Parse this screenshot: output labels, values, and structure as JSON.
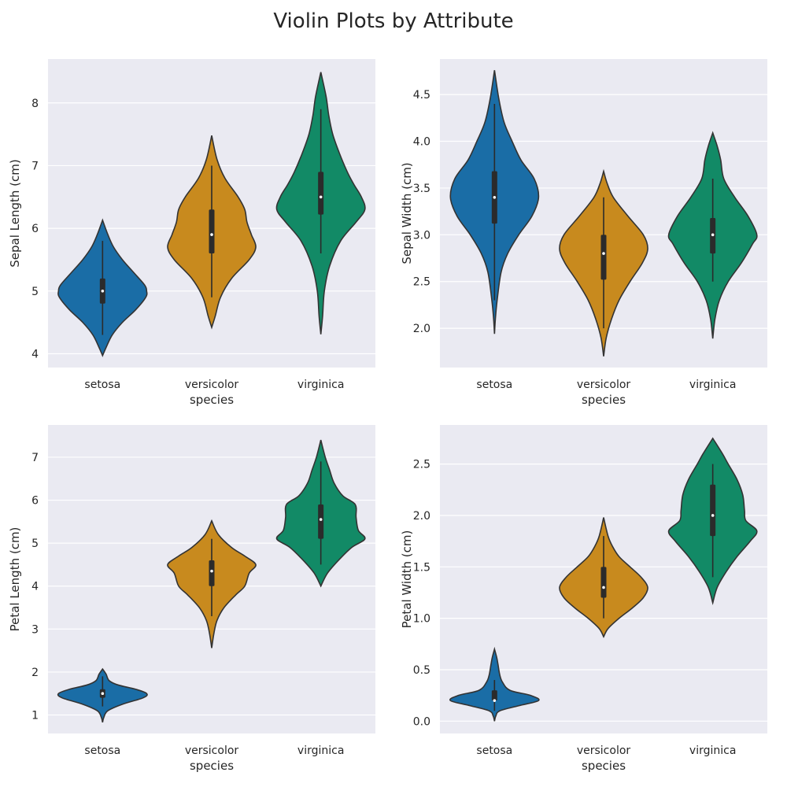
{
  "title": "Violin Plots by Attribute",
  "colors": {
    "setosa": "#1a6da6",
    "versicolor": "#c88a1e",
    "virginica": "#128a66",
    "background": "#eaeaf2",
    "outline": "#333333"
  },
  "chart_data": [
    {
      "type": "violin",
      "xlabel": "species",
      "ylabel": "Sepal Length (cm)",
      "categories": [
        "setosa",
        "versicolor",
        "virginica"
      ],
      "ylim": [
        3.78,
        8.7
      ],
      "yticks": [
        4,
        5,
        6,
        7,
        8
      ],
      "grid": true,
      "violins": [
        {
          "name": "setosa",
          "min": 4.3,
          "q1": 4.8,
          "median": 5.0,
          "q3": 5.2,
          "max": 5.8,
          "kde_min": 3.97,
          "kde_max": 6.13,
          "density": [
            [
              3.97,
              0.0
            ],
            [
              4.1,
              0.08
            ],
            [
              4.3,
              0.22
            ],
            [
              4.5,
              0.45
            ],
            [
              4.7,
              0.75
            ],
            [
              4.9,
              0.98
            ],
            [
              5.0,
              1.0
            ],
            [
              5.1,
              0.95
            ],
            [
              5.3,
              0.7
            ],
            [
              5.5,
              0.45
            ],
            [
              5.7,
              0.25
            ],
            [
              5.9,
              0.12
            ],
            [
              6.13,
              0.0
            ]
          ]
        },
        {
          "name": "versicolor",
          "min": 4.9,
          "q1": 5.6,
          "median": 5.9,
          "q3": 6.3,
          "max": 7.0,
          "kde_min": 4.42,
          "kde_max": 7.48,
          "density": [
            [
              4.42,
              0.0
            ],
            [
              4.6,
              0.08
            ],
            [
              4.9,
              0.2
            ],
            [
              5.2,
              0.45
            ],
            [
              5.5,
              0.85
            ],
            [
              5.7,
              1.0
            ],
            [
              5.9,
              0.9
            ],
            [
              6.1,
              0.8
            ],
            [
              6.3,
              0.75
            ],
            [
              6.5,
              0.6
            ],
            [
              6.8,
              0.3
            ],
            [
              7.1,
              0.12
            ],
            [
              7.48,
              0.0
            ]
          ]
        },
        {
          "name": "virginica",
          "min": 5.6,
          "q1": 6.22,
          "median": 6.5,
          "q3": 6.9,
          "max": 7.9,
          "kde_min": 4.31,
          "kde_max": 8.49,
          "density": [
            [
              4.31,
              0.0
            ],
            [
              4.6,
              0.04
            ],
            [
              5.0,
              0.08
            ],
            [
              5.4,
              0.2
            ],
            [
              5.8,
              0.45
            ],
            [
              6.1,
              0.8
            ],
            [
              6.3,
              1.0
            ],
            [
              6.5,
              0.92
            ],
            [
              6.7,
              0.75
            ],
            [
              6.9,
              0.6
            ],
            [
              7.2,
              0.42
            ],
            [
              7.5,
              0.27
            ],
            [
              7.8,
              0.18
            ],
            [
              8.1,
              0.12
            ],
            [
              8.49,
              0.0
            ]
          ]
        }
      ]
    },
    {
      "type": "violin",
      "xlabel": "species",
      "ylabel": "Sepal Width (cm)",
      "categories": [
        "setosa",
        "versicolor",
        "virginica"
      ],
      "ylim": [
        1.58,
        4.88
      ],
      "yticks": [
        2.0,
        2.5,
        3.0,
        3.5,
        4.0,
        4.5
      ],
      "grid": true,
      "violins": [
        {
          "name": "setosa",
          "min": 2.3,
          "q1": 3.12,
          "median": 3.4,
          "q3": 3.68,
          "max": 4.4,
          "kde_min": 1.94,
          "kde_max": 4.76,
          "density": [
            [
              1.94,
              0.0
            ],
            [
              2.1,
              0.02
            ],
            [
              2.3,
              0.06
            ],
            [
              2.6,
              0.15
            ],
            [
              2.8,
              0.3
            ],
            [
              3.0,
              0.55
            ],
            [
              3.2,
              0.85
            ],
            [
              3.4,
              1.0
            ],
            [
              3.6,
              0.9
            ],
            [
              3.8,
              0.6
            ],
            [
              4.0,
              0.4
            ],
            [
              4.2,
              0.22
            ],
            [
              4.45,
              0.1
            ],
            [
              4.76,
              0.0
            ]
          ]
        },
        {
          "name": "versicolor",
          "min": 2.0,
          "q1": 2.52,
          "median": 2.8,
          "q3": 3.0,
          "max": 3.4,
          "kde_min": 1.7,
          "kde_max": 3.68,
          "density": [
            [
              1.7,
              0.0
            ],
            [
              1.9,
              0.06
            ],
            [
              2.1,
              0.18
            ],
            [
              2.3,
              0.35
            ],
            [
              2.5,
              0.6
            ],
            [
              2.7,
              0.88
            ],
            [
              2.85,
              1.0
            ],
            [
              3.0,
              0.9
            ],
            [
              3.2,
              0.55
            ],
            [
              3.4,
              0.22
            ],
            [
              3.55,
              0.08
            ],
            [
              3.68,
              0.0
            ]
          ]
        },
        {
          "name": "virginica",
          "min": 2.5,
          "q1": 2.8,
          "median": 3.0,
          "q3": 3.18,
          "max": 3.6,
          "kde_min": 1.89,
          "kde_max": 4.09,
          "density": [
            [
              1.89,
              0.0
            ],
            [
              2.1,
              0.05
            ],
            [
              2.3,
              0.15
            ],
            [
              2.5,
              0.35
            ],
            [
              2.7,
              0.65
            ],
            [
              2.9,
              0.9
            ],
            [
              3.0,
              1.0
            ],
            [
              3.2,
              0.8
            ],
            [
              3.4,
              0.5
            ],
            [
              3.6,
              0.25
            ],
            [
              3.8,
              0.18
            ],
            [
              3.95,
              0.1
            ],
            [
              4.09,
              0.0
            ]
          ]
        }
      ]
    },
    {
      "type": "violin",
      "xlabel": "species",
      "ylabel": "Petal Length (cm)",
      "categories": [
        "setosa",
        "versicolor",
        "virginica"
      ],
      "ylim": [
        0.57,
        7.75
      ],
      "yticks": [
        1,
        2,
        3,
        4,
        5,
        6,
        7
      ],
      "grid": true,
      "violins": [
        {
          "name": "setosa",
          "min": 1.2,
          "q1": 1.4,
          "median": 1.5,
          "q3": 1.6,
          "max": 1.9,
          "kde_min": 0.83,
          "kde_max": 2.07,
          "density": [
            [
              0.83,
              0.0
            ],
            [
              0.95,
              0.03
            ],
            [
              1.1,
              0.12
            ],
            [
              1.25,
              0.45
            ],
            [
              1.4,
              0.92
            ],
            [
              1.5,
              1.0
            ],
            [
              1.6,
              0.75
            ],
            [
              1.7,
              0.35
            ],
            [
              1.8,
              0.15
            ],
            [
              1.95,
              0.08
            ],
            [
              2.07,
              0.0
            ]
          ]
        },
        {
          "name": "versicolor",
          "min": 3.3,
          "q1": 4.0,
          "median": 4.35,
          "q3": 4.6,
          "max": 5.1,
          "kde_min": 2.56,
          "kde_max": 5.52,
          "density": [
            [
              2.56,
              0.0
            ],
            [
              2.9,
              0.05
            ],
            [
              3.2,
              0.12
            ],
            [
              3.5,
              0.28
            ],
            [
              3.8,
              0.55
            ],
            [
              4.0,
              0.75
            ],
            [
              4.3,
              0.85
            ],
            [
              4.5,
              1.0
            ],
            [
              4.7,
              0.75
            ],
            [
              4.9,
              0.45
            ],
            [
              5.2,
              0.15
            ],
            [
              5.52,
              0.0
            ]
          ]
        },
        {
          "name": "virginica",
          "min": 4.5,
          "q1": 5.1,
          "median": 5.55,
          "q3": 5.9,
          "max": 6.9,
          "kde_min": 4.0,
          "kde_max": 7.4,
          "density": [
            [
              4.0,
              0.0
            ],
            [
              4.3,
              0.15
            ],
            [
              4.6,
              0.4
            ],
            [
              4.9,
              0.7
            ],
            [
              5.1,
              1.0
            ],
            [
              5.3,
              0.85
            ],
            [
              5.6,
              0.8
            ],
            [
              5.9,
              0.78
            ],
            [
              6.1,
              0.5
            ],
            [
              6.4,
              0.3
            ],
            [
              6.7,
              0.2
            ],
            [
              7.0,
              0.1
            ],
            [
              7.4,
              0.0
            ]
          ]
        }
      ]
    },
    {
      "type": "violin",
      "xlabel": "species",
      "ylabel": "Petal Width (cm)",
      "categories": [
        "setosa",
        "versicolor",
        "virginica"
      ],
      "ylim": [
        -0.12,
        2.88
      ],
      "yticks": [
        0.0,
        0.5,
        1.0,
        1.5,
        2.0,
        2.5
      ],
      "grid": true,
      "violins": [
        {
          "name": "setosa",
          "min": 0.1,
          "q1": 0.2,
          "median": 0.2,
          "q3": 0.3,
          "max": 0.4,
          "kde_min": 0.0,
          "kde_max": 0.7,
          "density": [
            [
              0.0,
              0.0
            ],
            [
              0.05,
              0.03
            ],
            [
              0.1,
              0.12
            ],
            [
              0.15,
              0.55
            ],
            [
              0.2,
              1.0
            ],
            [
              0.25,
              0.82
            ],
            [
              0.3,
              0.35
            ],
            [
              0.38,
              0.18
            ],
            [
              0.45,
              0.12
            ],
            [
              0.55,
              0.08
            ],
            [
              0.62,
              0.05
            ],
            [
              0.7,
              0.0
            ]
          ]
        },
        {
          "name": "versicolor",
          "min": 1.0,
          "q1": 1.2,
          "median": 1.3,
          "q3": 1.5,
          "max": 1.8,
          "kde_min": 0.82,
          "kde_max": 1.98,
          "density": [
            [
              0.82,
              0.0
            ],
            [
              0.9,
              0.1
            ],
            [
              1.0,
              0.35
            ],
            [
              1.1,
              0.65
            ],
            [
              1.2,
              0.9
            ],
            [
              1.3,
              1.0
            ],
            [
              1.4,
              0.85
            ],
            [
              1.5,
              0.6
            ],
            [
              1.6,
              0.35
            ],
            [
              1.7,
              0.2
            ],
            [
              1.8,
              0.1
            ],
            [
              1.98,
              0.0
            ]
          ]
        },
        {
          "name": "virginica",
          "min": 1.4,
          "q1": 1.8,
          "median": 2.0,
          "q3": 2.3,
          "max": 2.5,
          "kde_min": 1.15,
          "kde_max": 2.75,
          "density": [
            [
              1.15,
              0.0
            ],
            [
              1.3,
              0.1
            ],
            [
              1.45,
              0.3
            ],
            [
              1.6,
              0.55
            ],
            [
              1.75,
              0.85
            ],
            [
              1.85,
              1.0
            ],
            [
              1.95,
              0.75
            ],
            [
              2.05,
              0.72
            ],
            [
              2.2,
              0.68
            ],
            [
              2.35,
              0.55
            ],
            [
              2.5,
              0.35
            ],
            [
              2.6,
              0.22
            ],
            [
              2.75,
              0.0
            ]
          ]
        }
      ]
    }
  ]
}
